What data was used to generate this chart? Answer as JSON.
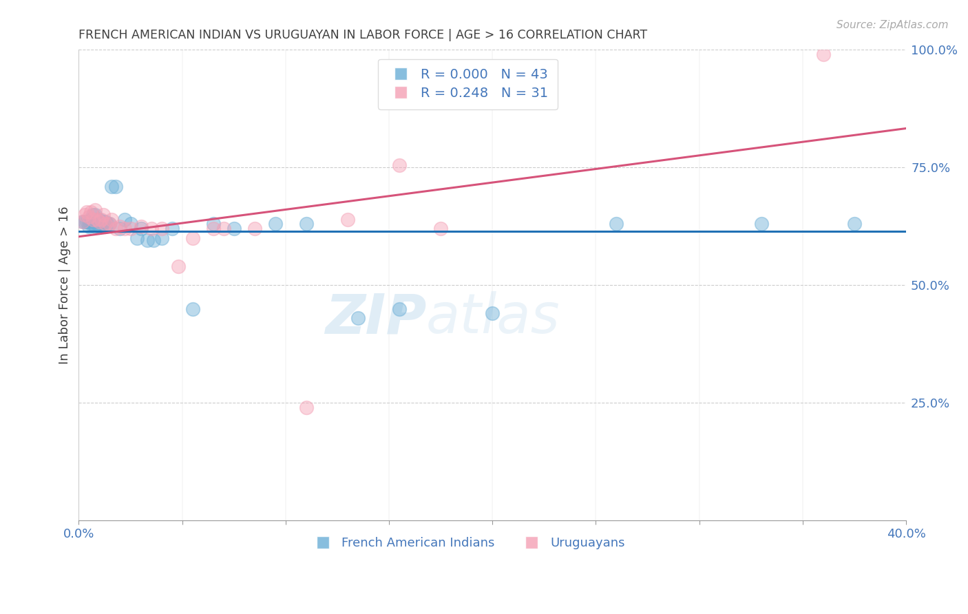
{
  "title": "FRENCH AMERICAN INDIAN VS URUGUAYAN IN LABOR FORCE | AGE > 16 CORRELATION CHART",
  "source_text": "Source: ZipAtlas.com",
  "ylabel": "In Labor Force | Age > 16",
  "xlim": [
    0.0,
    0.4
  ],
  "ylim": [
    0.0,
    1.0
  ],
  "y_ticks_right": [
    0.25,
    0.5,
    0.75,
    1.0
  ],
  "y_tick_labels_right": [
    "25.0%",
    "50.0%",
    "75.0%",
    "100.0%"
  ],
  "legend_blue_label": "French American Indians",
  "legend_pink_label": "Uruguayans",
  "R_blue": 0.0,
  "N_blue": 43,
  "R_pink": 0.248,
  "N_pink": 31,
  "blue_color": "#6baed6",
  "pink_color": "#f4a0b5",
  "blue_line_color": "#2171b5",
  "pink_line_color": "#d6537a",
  "title_color": "#404040",
  "axis_label_color": "#4477bb",
  "grid_color": "#cccccc",
  "watermark_zip": "ZIP",
  "watermark_atlas": "atlas",
  "blue_x": [
    0.002,
    0.003,
    0.004,
    0.005,
    0.005,
    0.006,
    0.006,
    0.007,
    0.007,
    0.008,
    0.008,
    0.009,
    0.009,
    0.01,
    0.01,
    0.011,
    0.012,
    0.013,
    0.013,
    0.014,
    0.015,
    0.016,
    0.018,
    0.02,
    0.022,
    0.025,
    0.028,
    0.03,
    0.033,
    0.036,
    0.04,
    0.045,
    0.055,
    0.065,
    0.075,
    0.095,
    0.11,
    0.135,
    0.155,
    0.2,
    0.26,
    0.33,
    0.375
  ],
  "blue_y": [
    0.635,
    0.635,
    0.635,
    0.635,
    0.625,
    0.64,
    0.63,
    0.65,
    0.63,
    0.65,
    0.625,
    0.64,
    0.63,
    0.625,
    0.64,
    0.63,
    0.635,
    0.635,
    0.625,
    0.63,
    0.63,
    0.71,
    0.71,
    0.62,
    0.64,
    0.63,
    0.6,
    0.62,
    0.595,
    0.595,
    0.6,
    0.62,
    0.45,
    0.63,
    0.62,
    0.63,
    0.63,
    0.43,
    0.45,
    0.44,
    0.63,
    0.63,
    0.63
  ],
  "pink_x": [
    0.002,
    0.003,
    0.004,
    0.005,
    0.006,
    0.007,
    0.008,
    0.009,
    0.01,
    0.011,
    0.012,
    0.013,
    0.015,
    0.016,
    0.018,
    0.02,
    0.022,
    0.025,
    0.03,
    0.035,
    0.04,
    0.048,
    0.055,
    0.065,
    0.07,
    0.085,
    0.11,
    0.13,
    0.155,
    0.175,
    0.36
  ],
  "pink_y": [
    0.635,
    0.65,
    0.655,
    0.645,
    0.655,
    0.64,
    0.66,
    0.64,
    0.635,
    0.64,
    0.65,
    0.63,
    0.63,
    0.64,
    0.62,
    0.625,
    0.62,
    0.62,
    0.625,
    0.62,
    0.62,
    0.54,
    0.6,
    0.62,
    0.62,
    0.62,
    0.24,
    0.64,
    0.755,
    0.62,
    0.99
  ],
  "blue_trend_y_intercept": 0.63,
  "blue_trend_slope": 0.0,
  "pink_trend_y_intercept": 0.61,
  "pink_trend_slope": 0.62
}
